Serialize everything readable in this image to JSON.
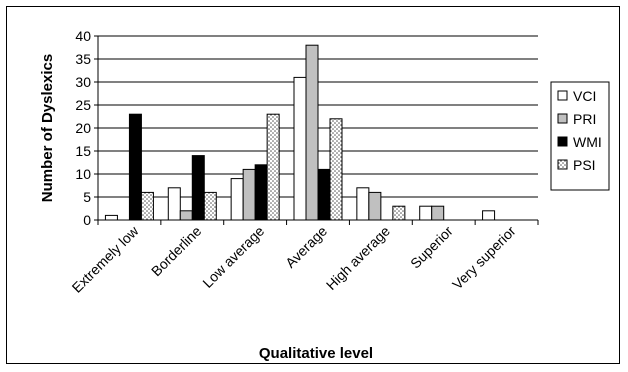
{
  "chart_data": {
    "type": "bar",
    "xlabel": "Qualitative level",
    "ylabel": "Number of Dyslexics",
    "ylim": [
      0,
      40
    ],
    "yticks": [
      0,
      5,
      10,
      15,
      20,
      25,
      30,
      35,
      40
    ],
    "grid": true,
    "legend_position": "right",
    "categories": [
      "Extremely low",
      "Borderline",
      "Low average",
      "Average",
      "High average",
      "Superior",
      "Very superior"
    ],
    "series": [
      {
        "name": "VCI",
        "color": "#ffffff",
        "pattern": "none",
        "values": [
          1,
          7,
          9,
          31,
          7,
          3,
          2
        ]
      },
      {
        "name": "PRI",
        "color": "#c0c0c0",
        "pattern": "none",
        "values": [
          0,
          2,
          11,
          38,
          6,
          3,
          0
        ]
      },
      {
        "name": "WMI",
        "color": "#000000",
        "pattern": "none",
        "values": [
          23,
          14,
          12,
          11,
          0,
          0,
          0
        ]
      },
      {
        "name": "PSI",
        "color": "#ffffff",
        "pattern": "dots",
        "values": [
          6,
          6,
          23,
          22,
          3,
          0,
          0
        ]
      }
    ]
  }
}
